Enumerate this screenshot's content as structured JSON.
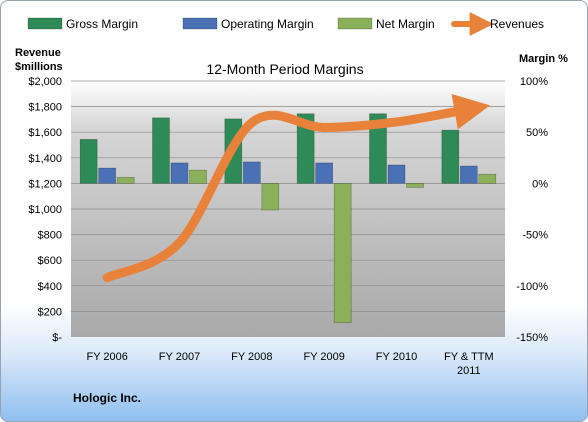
{
  "company": "Hologic Inc.",
  "chart_data": {
    "type": "bar",
    "title": "12-Month Period Margins",
    "categories": [
      "FY 2006",
      "FY 2007",
      "FY 2008",
      "FY 2009",
      "FY 2010",
      "FY & TTM 2011"
    ],
    "category_lines": [
      [
        "FY 2006"
      ],
      [
        "FY 2007"
      ],
      [
        "FY 2008"
      ],
      [
        "FY 2009"
      ],
      [
        "FY 2010"
      ],
      [
        "FY & TTM",
        "2011"
      ]
    ],
    "left_axis": {
      "title_lines": [
        "Revenue",
        "$millions"
      ],
      "range": [
        0,
        2000
      ],
      "ticks": [
        0,
        200,
        400,
        600,
        800,
        1000,
        1200,
        1400,
        1600,
        1800,
        2000
      ],
      "tick_labels": [
        "$-",
        "$200",
        "$400",
        "$600",
        "$800",
        "$1,000",
        "$1,200",
        "$1,400",
        "$1,600",
        "$1,800",
        "$2,000"
      ]
    },
    "right_axis": {
      "title": "Margin %",
      "range": [
        -150,
        100
      ],
      "ticks": [
        -150,
        -100,
        -50,
        0,
        50,
        100
      ],
      "tick_labels": [
        "-150%",
        "-100%",
        "-50%",
        "0%",
        "50%",
        "100%"
      ]
    },
    "series": [
      {
        "name": "Gross Margin",
        "kind": "bar",
        "axis": "right",
        "color": "#2e8b57",
        "values": [
          43,
          64,
          63,
          68,
          68,
          52
        ]
      },
      {
        "name": "Operating Margin",
        "kind": "bar",
        "axis": "right",
        "color": "#4a70b5",
        "values": [
          15,
          20,
          21,
          20,
          18,
          17
        ]
      },
      {
        "name": "Net Margin",
        "kind": "bar",
        "axis": "right",
        "color": "#8bb05a",
        "values": [
          6,
          13,
          -26,
          -136,
          -4,
          9
        ]
      },
      {
        "name": "Revenues",
        "kind": "line",
        "axis": "left",
        "color": "#e8823a",
        "values": [
          463,
          738,
          1675,
          1637,
          1680,
          1780
        ]
      }
    ],
    "grid": true,
    "legend": "top"
  }
}
